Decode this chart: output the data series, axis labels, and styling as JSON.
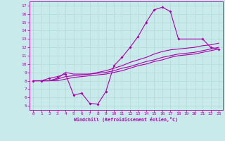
{
  "xlabel": "Windchill (Refroidissement éolien,°C)",
  "xlim": [
    -0.5,
    23.5
  ],
  "ylim": [
    4.5,
    17.5
  ],
  "xticks": [
    0,
    1,
    2,
    3,
    4,
    5,
    6,
    7,
    8,
    9,
    10,
    11,
    12,
    13,
    14,
    15,
    16,
    17,
    18,
    19,
    20,
    21,
    22,
    23
  ],
  "yticks": [
    5,
    6,
    7,
    8,
    9,
    10,
    11,
    12,
    13,
    14,
    15,
    16,
    17
  ],
  "bg_color": "#c8eaea",
  "line_color": "#aa00aa",
  "grid_color": "#b0d8d8",
  "line1_x": [
    0,
    1,
    2,
    3,
    4,
    5,
    6,
    7,
    8,
    9,
    10,
    11,
    12,
    13,
    14,
    15,
    16,
    17,
    18,
    19,
    20,
    21,
    22,
    23
  ],
  "line1_y": [
    8.0,
    8.0,
    8.3,
    8.5,
    8.8,
    6.3,
    6.5,
    5.3,
    5.2,
    6.7,
    9.8,
    10.8,
    12.0,
    13.3,
    15.0,
    16.5,
    16.8,
    16.3,
    13.0,
    null,
    null,
    13.0,
    12.0,
    11.8
  ],
  "line2_x": [
    0,
    1,
    2,
    3,
    4,
    5,
    6,
    7,
    8,
    9,
    10,
    11,
    12,
    13,
    14,
    15,
    16,
    17,
    18,
    19,
    20,
    21,
    22,
    23
  ],
  "line2_y": [
    8.0,
    8.0,
    8.0,
    8.3,
    9.0,
    8.8,
    8.8,
    8.8,
    9.0,
    9.2,
    9.5,
    9.8,
    10.2,
    10.5,
    10.8,
    11.2,
    11.5,
    11.7,
    11.8,
    11.9,
    12.0,
    12.2,
    12.3,
    12.5
  ],
  "line3_x": [
    0,
    1,
    2,
    3,
    4,
    5,
    6,
    7,
    8,
    9,
    10,
    11,
    12,
    13,
    14,
    15,
    16,
    17,
    18,
    19,
    20,
    21,
    22,
    23
  ],
  "line3_y": [
    8.0,
    8.0,
    8.0,
    8.2,
    8.5,
    8.6,
    8.7,
    8.8,
    8.9,
    9.0,
    9.2,
    9.5,
    9.7,
    10.0,
    10.3,
    10.5,
    10.8,
    11.0,
    11.2,
    11.3,
    11.4,
    11.6,
    11.8,
    12.0
  ],
  "line4_x": [
    0,
    1,
    2,
    3,
    4,
    5,
    6,
    7,
    8,
    9,
    10,
    11,
    12,
    13,
    14,
    15,
    16,
    17,
    18,
    19,
    20,
    21,
    22,
    23
  ],
  "line4_y": [
    8.0,
    8.0,
    8.0,
    8.0,
    8.2,
    8.4,
    8.5,
    8.6,
    8.7,
    8.8,
    9.0,
    9.2,
    9.5,
    9.8,
    10.0,
    10.3,
    10.5,
    10.8,
    11.0,
    11.1,
    11.2,
    11.4,
    11.6,
    11.8
  ]
}
